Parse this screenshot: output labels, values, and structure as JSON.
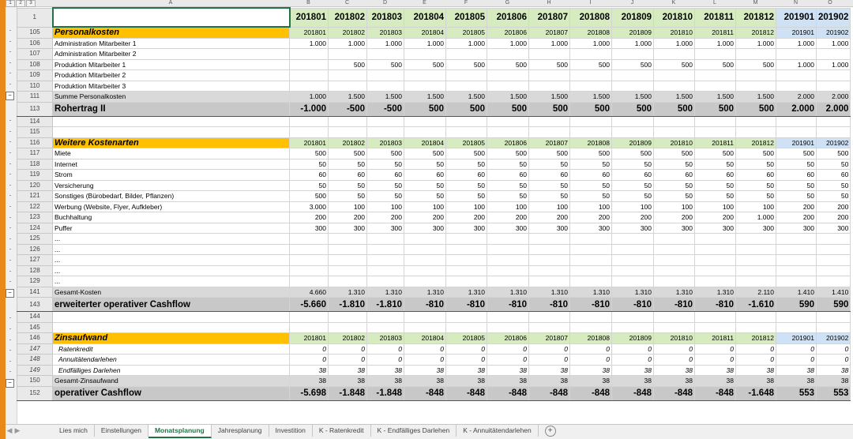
{
  "outline_levels": [
    "1",
    "2",
    "3"
  ],
  "col_letters": [
    "A",
    "B",
    "C",
    "D",
    "E",
    "F",
    "G",
    "H",
    "I",
    "J",
    "K",
    "L",
    "M",
    "N",
    "O"
  ],
  "periods": [
    "201801",
    "201802",
    "201803",
    "201804",
    "201805",
    "201806",
    "201807",
    "201808",
    "201809",
    "201810",
    "201811",
    "201812",
    "201901",
    "201902"
  ],
  "rows": [
    {
      "n": "1",
      "type": "hdr1",
      "label": "",
      "periods": true
    },
    {
      "n": "105",
      "type": "sec",
      "label": "Personalkosten",
      "periods": true
    },
    {
      "n": "106",
      "type": "norm",
      "label": "Administration Mitarbeiter 1",
      "values": [
        "1.000",
        "1.000",
        "1.000",
        "1.000",
        "1.000",
        "1.000",
        "1.000",
        "1.000",
        "1.000",
        "1.000",
        "1.000",
        "1.000",
        "1.000",
        "1.000"
      ]
    },
    {
      "n": "107",
      "type": "norm",
      "label": "Administration Mitarbeiter 2",
      "values": [
        "",
        "",
        "",
        "",
        "",
        "",
        "",
        "",
        "",
        "",
        "",
        "",
        "",
        ""
      ]
    },
    {
      "n": "108",
      "type": "norm",
      "label": "Produktion Mitarbeiter 1",
      "values": [
        "",
        "500",
        "500",
        "500",
        "500",
        "500",
        "500",
        "500",
        "500",
        "500",
        "500",
        "500",
        "1.000",
        "1.000"
      ]
    },
    {
      "n": "109",
      "type": "norm",
      "label": "Produktion Mitarbeiter 2",
      "values": [
        "",
        "",
        "",
        "",
        "",
        "",
        "",
        "",
        "",
        "",
        "",
        "",
        "",
        ""
      ]
    },
    {
      "n": "110",
      "type": "norm",
      "label": "Produktion Mitarbeiter 3",
      "values": [
        "",
        "",
        "",
        "",
        "",
        "",
        "",
        "",
        "",
        "",
        "",
        "",
        "",
        ""
      ]
    },
    {
      "n": "111",
      "type": "sum",
      "label": "Summe Personalkosten",
      "values": [
        "1.000",
        "1.500",
        "1.500",
        "1.500",
        "1.500",
        "1.500",
        "1.500",
        "1.500",
        "1.500",
        "1.500",
        "1.500",
        "1.500",
        "2.000",
        "2.000"
      ]
    },
    {
      "n": "113",
      "type": "big",
      "label": "Rohertrag II",
      "values": [
        "-1.000",
        "-500",
        "-500",
        "500",
        "500",
        "500",
        "500",
        "500",
        "500",
        "500",
        "500",
        "500",
        "2.000",
        "2.000"
      ]
    },
    {
      "n": "114",
      "type": "norm",
      "label": "",
      "values": [
        "",
        "",
        "",
        "",
        "",
        "",
        "",
        "",
        "",
        "",
        "",
        "",
        "",
        ""
      ]
    },
    {
      "n": "115",
      "type": "norm",
      "label": "",
      "values": [
        "",
        "",
        "",
        "",
        "",
        "",
        "",
        "",
        "",
        "",
        "",
        "",
        "",
        ""
      ]
    },
    {
      "n": "116",
      "type": "sec",
      "label": "Weitere Kostenarten",
      "periods": true
    },
    {
      "n": "117",
      "type": "norm",
      "label": "Miete",
      "values": [
        "500",
        "500",
        "500",
        "500",
        "500",
        "500",
        "500",
        "500",
        "500",
        "500",
        "500",
        "500",
        "500",
        "500"
      ]
    },
    {
      "n": "118",
      "type": "norm",
      "label": "Internet",
      "values": [
        "50",
        "50",
        "50",
        "50",
        "50",
        "50",
        "50",
        "50",
        "50",
        "50",
        "50",
        "50",
        "50",
        "50"
      ]
    },
    {
      "n": "119",
      "type": "norm",
      "label": "Strom",
      "values": [
        "60",
        "60",
        "60",
        "60",
        "60",
        "60",
        "60",
        "60",
        "60",
        "60",
        "60",
        "60",
        "60",
        "60"
      ]
    },
    {
      "n": "120",
      "type": "norm",
      "label": "Versicherung",
      "values": [
        "50",
        "50",
        "50",
        "50",
        "50",
        "50",
        "50",
        "50",
        "50",
        "50",
        "50",
        "50",
        "50",
        "50"
      ]
    },
    {
      "n": "121",
      "type": "norm",
      "label": "Sonstiges (Bürobedarf, Bilder, Pflanzen)",
      "values": [
        "500",
        "50",
        "50",
        "50",
        "50",
        "50",
        "50",
        "50",
        "50",
        "50",
        "50",
        "50",
        "50",
        "50"
      ]
    },
    {
      "n": "122",
      "type": "norm",
      "label": "Werbung (Website, Flyer, Aufkleber)",
      "values": [
        "3.000",
        "100",
        "100",
        "100",
        "100",
        "100",
        "100",
        "100",
        "100",
        "100",
        "100",
        "100",
        "200",
        "200"
      ]
    },
    {
      "n": "123",
      "type": "norm",
      "label": "Buchhaltung",
      "values": [
        "200",
        "200",
        "200",
        "200",
        "200",
        "200",
        "200",
        "200",
        "200",
        "200",
        "200",
        "1.000",
        "200",
        "200"
      ]
    },
    {
      "n": "124",
      "type": "norm",
      "label": "Puffer",
      "values": [
        "300",
        "300",
        "300",
        "300",
        "300",
        "300",
        "300",
        "300",
        "300",
        "300",
        "300",
        "300",
        "300",
        "300"
      ]
    },
    {
      "n": "125",
      "type": "norm",
      "label": "...",
      "values": [
        "",
        "",
        "",
        "",
        "",
        "",
        "",
        "",
        "",
        "",
        "",
        "",
        "",
        ""
      ]
    },
    {
      "n": "126",
      "type": "norm",
      "label": "...",
      "values": [
        "",
        "",
        "",
        "",
        "",
        "",
        "",
        "",
        "",
        "",
        "",
        "",
        "",
        ""
      ]
    },
    {
      "n": "127",
      "type": "norm",
      "label": "...",
      "values": [
        "",
        "",
        "",
        "",
        "",
        "",
        "",
        "",
        "",
        "",
        "",
        "",
        "",
        ""
      ]
    },
    {
      "n": "128",
      "type": "norm",
      "label": "...",
      "values": [
        "",
        "",
        "",
        "",
        "",
        "",
        "",
        "",
        "",
        "",
        "",
        "",
        "",
        ""
      ]
    },
    {
      "n": "129",
      "type": "norm",
      "label": "...",
      "values": [
        "",
        "",
        "",
        "",
        "",
        "",
        "",
        "",
        "",
        "",
        "",
        "",
        "",
        ""
      ]
    },
    {
      "n": "141",
      "type": "sum",
      "label": "Gesamt-Kosten",
      "values": [
        "4.660",
        "1.310",
        "1.310",
        "1.310",
        "1.310",
        "1.310",
        "1.310",
        "1.310",
        "1.310",
        "1.310",
        "1.310",
        "2.110",
        "1.410",
        "1.410"
      ]
    },
    {
      "n": "143",
      "type": "big",
      "label": "erweiterter operativer Cashflow",
      "values": [
        "-5.660",
        "-1.810",
        "-1.810",
        "-810",
        "-810",
        "-810",
        "-810",
        "-810",
        "-810",
        "-810",
        "-810",
        "-1.610",
        "590",
        "590"
      ]
    },
    {
      "n": "144",
      "type": "norm",
      "label": "",
      "values": [
        "",
        "",
        "",
        "",
        "",
        "",
        "",
        "",
        "",
        "",
        "",
        "",
        "",
        ""
      ]
    },
    {
      "n": "145",
      "type": "norm",
      "label": "",
      "values": [
        "",
        "",
        "",
        "",
        "",
        "",
        "",
        "",
        "",
        "",
        "",
        "",
        "",
        ""
      ]
    },
    {
      "n": "146",
      "type": "sec",
      "label": "Zinsaufwand",
      "periods": true
    },
    {
      "n": "147",
      "type": "ital",
      "label": "Ratenkredit",
      "values": [
        "0",
        "0",
        "0",
        "0",
        "0",
        "0",
        "0",
        "0",
        "0",
        "0",
        "0",
        "0",
        "0",
        "0"
      ]
    },
    {
      "n": "148",
      "type": "ital",
      "label": "Annuitätendarlehen",
      "values": [
        "0",
        "0",
        "0",
        "0",
        "0",
        "0",
        "0",
        "0",
        "0",
        "0",
        "0",
        "0",
        "0",
        "0"
      ]
    },
    {
      "n": "149",
      "type": "ital",
      "label": "Endfälliges Darlehen",
      "values": [
        "38",
        "38",
        "38",
        "38",
        "38",
        "38",
        "38",
        "38",
        "38",
        "38",
        "38",
        "38",
        "38",
        "38"
      ]
    },
    {
      "n": "150",
      "type": "sum",
      "label": "Gesamt-Zinsaufwand",
      "values": [
        "38",
        "38",
        "38",
        "38",
        "38",
        "38",
        "38",
        "38",
        "38",
        "38",
        "38",
        "38",
        "38",
        "38"
      ]
    },
    {
      "n": "152",
      "type": "big",
      "label": "operativer Cashflow",
      "values": [
        "-5.698",
        "-1.848",
        "-1.848",
        "-848",
        "-848",
        "-848",
        "-848",
        "-848",
        "-848",
        "-848",
        "-848",
        "-1.648",
        "553",
        "553"
      ]
    }
  ],
  "tabs": [
    "Lies mich",
    "Einstellungen",
    "Monatsplanung",
    "Jahresplanung",
    "Investition",
    "K - Ratenkredit",
    "K - Endfälliges Darlehen",
    "K - Annuitätendarlehen"
  ],
  "active_tab": "Monatsplanung",
  "add_sheet_symbol": "+",
  "nav_symbols": [
    "◀",
    "▶"
  ],
  "collapse_symbol": "−",
  "colors": {
    "section_header": "#ffc000",
    "period_2018": "#d6ecc0",
    "period_2019": "#cfe2f5",
    "sum_row": "#d9d9d9",
    "accent": "#217346",
    "window_frame": "#e8891a"
  }
}
